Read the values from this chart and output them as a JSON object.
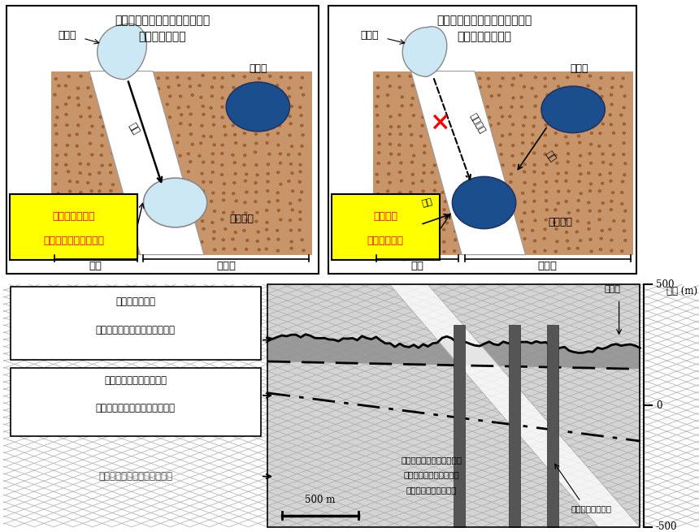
{
  "title_left": "割れ目に沿った地下水の流れが\n生じている場合",
  "title_right": "割れ目に沿った地下水の流れが\n生じていない場合",
  "label_chihyosui": "地表水",
  "label_kangesui": "間隙水",
  "label_waremesu": "割れ目水",
  "label_kyokyu": "供給",
  "label_kakusannashi": "供給なし",
  "label_kakusan": "拡散",
  "label_iwa": "岩石",
  "label_wareme": "割れ目",
  "box_left_text1": "間隙水と比べて",
  "box_left_text2": "より地表水に近い組成",
  "box_right_text1": "間隙水と",
  "box_right_text2": "ほぼ同じ組成",
  "section_label1_line1": "割れ目に沿って",
  "section_label1_line2": "現在の地表水が流れている領域",
  "section_label2_line1": "過去に、割れ目に沿って",
  "section_label2_line2": "氷期の地表水が流れていた領域",
  "section_label3": "地表水が浸透していない領域",
  "section_label4_line1": "構造的に、割れ目に沿って",
  "section_label4_line2": "地下水が流れやすい領域",
  "section_label4_line3": "（先行研究に基づく）",
  "section_label5": "500 m",
  "section_label6": "調査ボーリング孔",
  "section_label7": "地表面",
  "axis_label": "海抜 (m)",
  "bg_color": "#ffffff",
  "sand_color": "#c8956a",
  "dark_blue": "#1a4e8c",
  "light_blue": "#cce8f4",
  "light_blue2": "#a8d4ee"
}
